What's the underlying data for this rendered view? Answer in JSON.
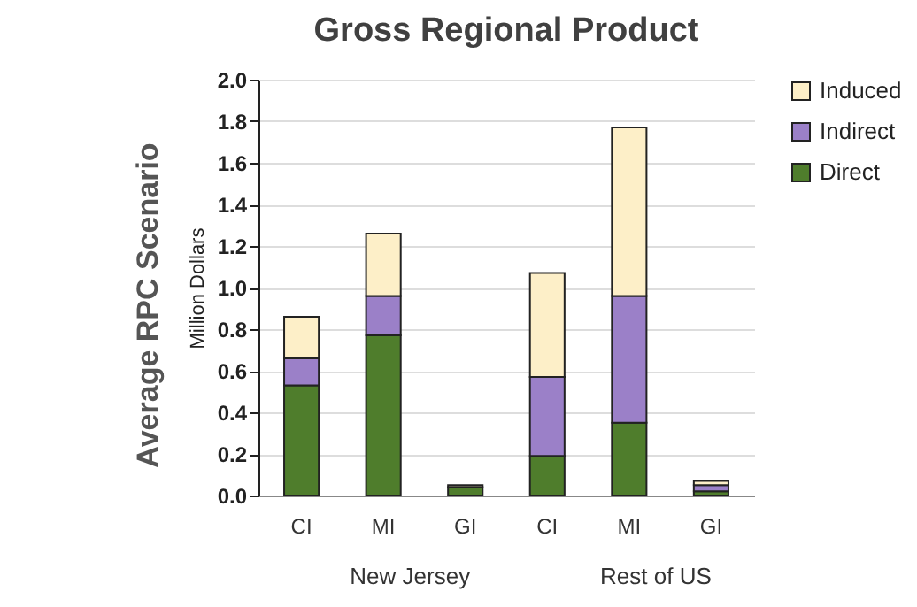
{
  "chart_data": {
    "type": "bar",
    "title": "Gross Regional Product",
    "ylabel": "Million Dollars",
    "annotations": [
      "Average RPC Scenario",
      "New Jersey",
      "Rest of US"
    ],
    "categories": [
      "CI",
      "MI",
      "GI",
      "CI",
      "MI",
      "GI"
    ],
    "stacked": true,
    "series": [
      {
        "name": "Direct",
        "color": "#4f7d2c",
        "values": [
          0.53,
          0.77,
          0.04,
          0.19,
          0.35,
          0.02
        ]
      },
      {
        "name": "Indirect",
        "color": "#9b80c8",
        "values": [
          0.13,
          0.19,
          null,
          0.38,
          0.61,
          0.03
        ]
      },
      {
        "name": "Induced",
        "color": "#fdefc8",
        "values": [
          0.2,
          0.3,
          0.01,
          0.5,
          0.81,
          0.02
        ]
      }
    ],
    "ylim": [
      0,
      2.0
    ],
    "yticks": [
      {
        "value": 0,
        "label": "0.0"
      },
      {
        "value": 0.2,
        "label": "0.2"
      },
      {
        "value": 0.4,
        "label": "0.4"
      },
      {
        "value": 0.6,
        "label": "0.6"
      },
      {
        "value": 0.8,
        "label": "0.8"
      },
      {
        "value": 1.0,
        "label": "1.0"
      },
      {
        "value": 1.2,
        "label": "1.2"
      },
      {
        "value": 1.4,
        "label": "1.4"
      },
      {
        "value": 1.6,
        "label": "1.6"
      },
      {
        "value": 1.8,
        "label": "1.8"
      },
      {
        "value": 2.0,
        "label": "2.0"
      }
    ],
    "grid": "y",
    "legend": "right"
  }
}
